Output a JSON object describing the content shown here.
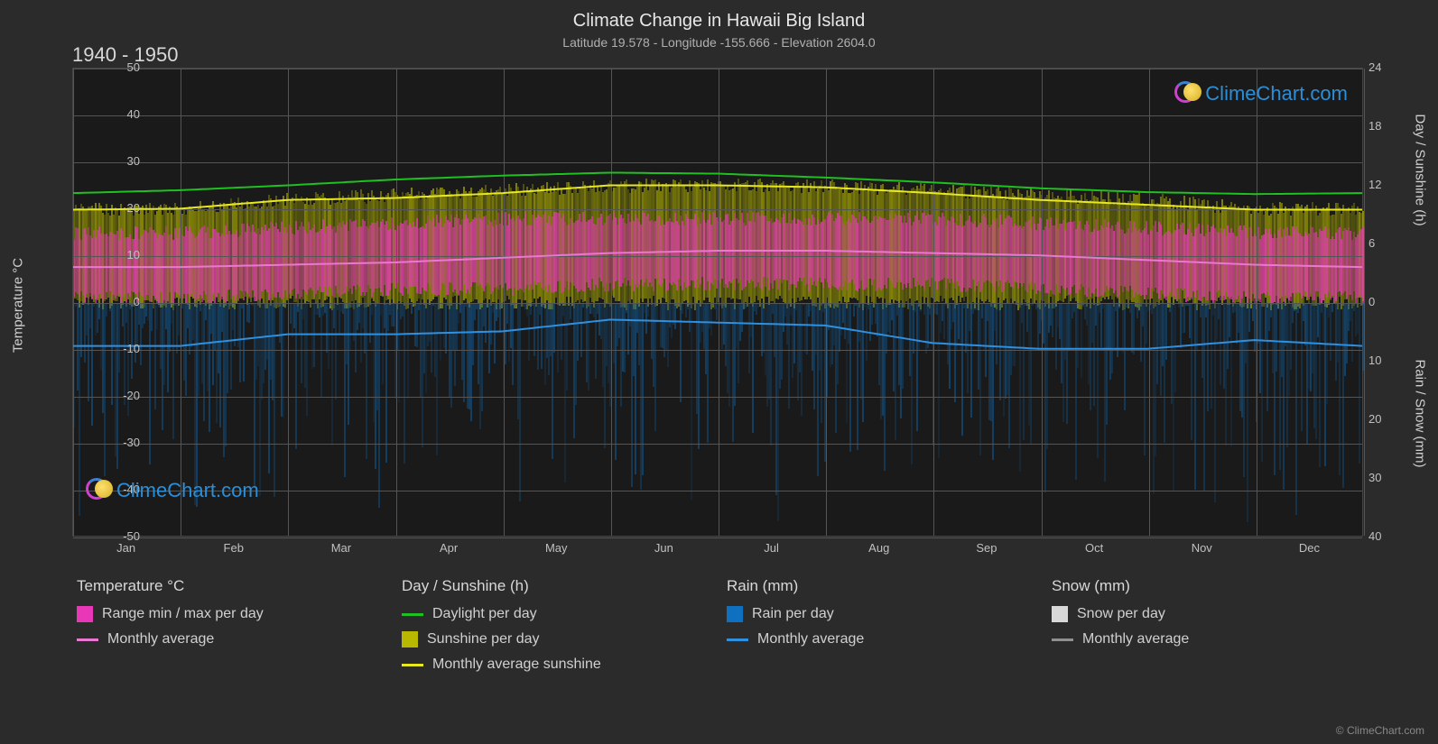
{
  "title": "Climate Change in Hawaii Big Island",
  "subtitle": "Latitude 19.578 - Longitude -155.666 - Elevation 2604.0",
  "period": "1940 - 1950",
  "brand": "ClimeChart.com",
  "copyright": "© ClimeChart.com",
  "chart": {
    "type": "line+band",
    "background_color": "#1a1a1a",
    "grid_color": "#555555",
    "y_left": {
      "title": "Temperature °C",
      "min": -50,
      "max": 50,
      "tick_step": 10,
      "ticks": [
        50,
        40,
        30,
        20,
        10,
        0,
        -10,
        -20,
        -30,
        -40,
        -50
      ]
    },
    "y_right_top": {
      "title": "Day / Sunshine (h)",
      "min": 0,
      "max": 24,
      "tick_step": 6,
      "ticks": [
        24,
        18,
        12,
        6,
        0
      ]
    },
    "y_right_bottom": {
      "title": "Rain / Snow (mm)",
      "min": 0,
      "max": 40,
      "tick_step": 10,
      "ticks": [
        0,
        10,
        20,
        30,
        40
      ]
    },
    "x": {
      "labels": [
        "Jan",
        "Feb",
        "Mar",
        "Apr",
        "May",
        "Jun",
        "Jul",
        "Aug",
        "Sep",
        "Oct",
        "Nov",
        "Dec"
      ]
    },
    "bands": {
      "temp_range": {
        "color": "#e838b8",
        "top_c": [
          15,
          15,
          16,
          17,
          18,
          18,
          18,
          18,
          18,
          17,
          16,
          15
        ],
        "bottom_c": [
          1,
          1,
          2,
          3,
          3,
          4,
          4,
          4,
          4,
          3,
          2,
          1
        ]
      },
      "sunshine": {
        "color": "#b8b800",
        "top_c": [
          20,
          20,
          22,
          23,
          24,
          25,
          25,
          25,
          24,
          23,
          22,
          20
        ],
        "bottom_c": [
          0,
          0,
          0,
          0,
          0,
          0,
          0,
          0,
          0,
          0,
          0,
          0
        ]
      },
      "rain_bars": {
        "color": "#1060a0",
        "top_c": 0,
        "bottom_c": -50
      }
    },
    "lines": {
      "daylight": {
        "color": "#20c020",
        "width": 2,
        "values_h": [
          11.2,
          11.5,
          12.0,
          12.6,
          13.0,
          13.3,
          13.2,
          12.8,
          12.3,
          11.7,
          11.3,
          11.1
        ]
      },
      "sunshine_avg": {
        "color": "#e8e820",
        "width": 2,
        "values_h": [
          9.5,
          9.6,
          10.5,
          10.7,
          11.2,
          12.0,
          12.0,
          11.8,
          11.2,
          10.5,
          10.0,
          9.5
        ]
      },
      "temp_avg": {
        "color": "#e878d0",
        "width": 2,
        "values_c": [
          7.5,
          7.5,
          8.0,
          8.5,
          9.5,
          10.5,
          11.0,
          11.0,
          10.5,
          10.0,
          9.0,
          8.0
        ]
      },
      "rain_avg": {
        "color": "#3090e0",
        "width": 2,
        "values_mm": [
          7.5,
          7.5,
          5.5,
          5.5,
          5.0,
          3.0,
          3.5,
          4.0,
          7.0,
          8.0,
          8.0,
          6.5
        ]
      },
      "snow_avg": {
        "color": "#909090",
        "width": 1,
        "values_mm": [
          0,
          0,
          0,
          0,
          0,
          0,
          0,
          0,
          0,
          0,
          0,
          0
        ]
      }
    }
  },
  "legend": {
    "col1": {
      "header": "Temperature °C",
      "items": [
        {
          "type": "box",
          "color": "#e838b8",
          "label": "Range min / max per day"
        },
        {
          "type": "line",
          "color": "#e878d0",
          "label": "Monthly average"
        }
      ]
    },
    "col2": {
      "header": "Day / Sunshine (h)",
      "items": [
        {
          "type": "line",
          "color": "#20c020",
          "label": "Daylight per day"
        },
        {
          "type": "box",
          "color": "#b8b800",
          "label": "Sunshine per day"
        },
        {
          "type": "line",
          "color": "#e8e820",
          "label": "Monthly average sunshine"
        }
      ]
    },
    "col3": {
      "header": "Rain (mm)",
      "items": [
        {
          "type": "box",
          "color": "#1070c0",
          "label": "Rain per day"
        },
        {
          "type": "line",
          "color": "#3090e0",
          "label": "Monthly average"
        }
      ]
    },
    "col4": {
      "header": "Snow (mm)",
      "items": [
        {
          "type": "box",
          "color": "#d8d8d8",
          "label": "Snow per day"
        },
        {
          "type": "line",
          "color": "#909090",
          "label": "Monthly average"
        }
      ]
    }
  }
}
